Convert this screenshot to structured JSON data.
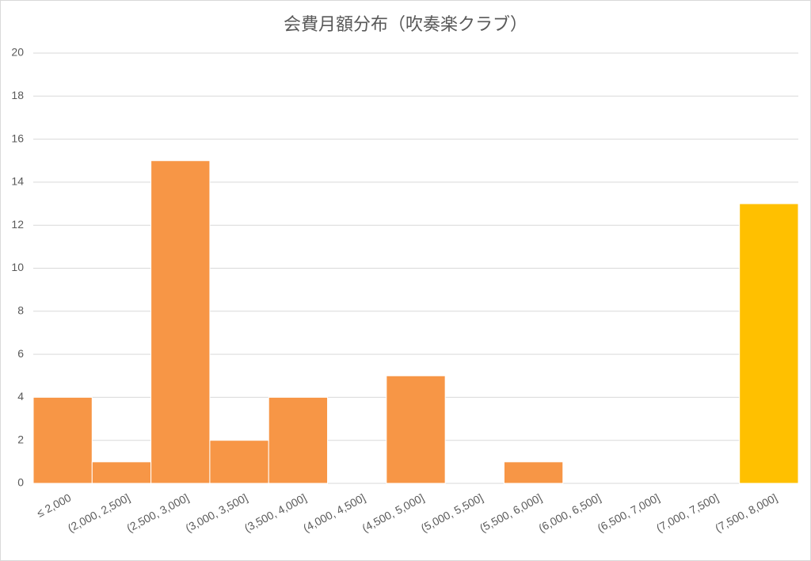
{
  "chart_data": {
    "type": "bar",
    "title": "会費月額分布（吹奏楽クラブ）",
    "categories": [
      "≤ 2,000",
      "(2,000, 2,500]",
      "(2,500, 3,000]",
      "(3,000, 3,500]",
      "(3,500, 4,000]",
      "(4,000, 4,500]",
      "(4,500, 5,000]",
      "(5,000, 5,500]",
      "(5,500, 6,000]",
      "(6,000, 6,500]",
      "(6,500, 7,000]",
      "(7,000, 7,500]",
      "(7,500, 8,000]"
    ],
    "values": [
      4,
      1,
      15,
      2,
      4,
      0,
      5,
      0,
      1,
      0,
      0,
      0,
      13
    ],
    "colors": [
      "#f79646",
      "#f79646",
      "#f79646",
      "#f79646",
      "#f79646",
      "#f79646",
      "#f79646",
      "#f79646",
      "#f79646",
      "#f79646",
      "#f79646",
      "#f79646",
      "#ffc000"
    ],
    "ylim": [
      0,
      20
    ],
    "yticks": [
      0,
      2,
      4,
      6,
      8,
      10,
      12,
      14,
      16,
      18,
      20
    ],
    "grid": true
  }
}
